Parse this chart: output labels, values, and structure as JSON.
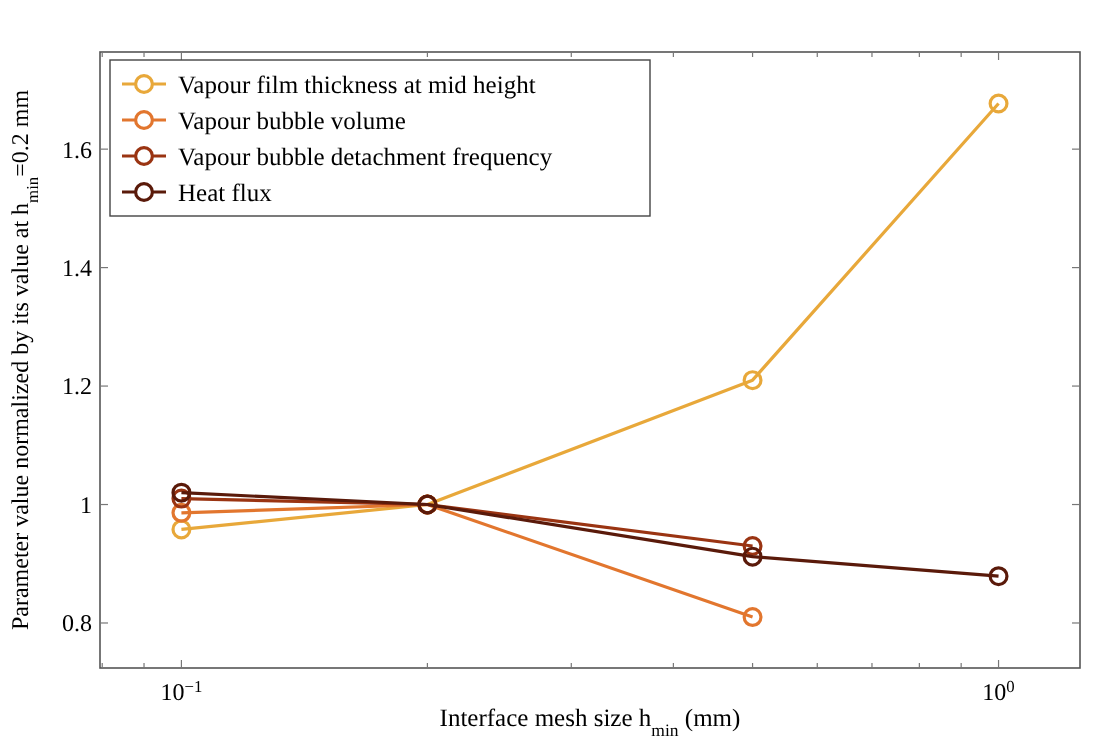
{
  "chart_data": {
    "type": "line",
    "xlabel": "Interface mesh size h$_{min}$ (mm)",
    "ylabel": "Parameter value normalized by its value at h$_{min}$=0.2 mm",
    "log": "x",
    "xlim": [
      0.0795,
      1.258
    ],
    "ylim": [
      0.724,
      1.764
    ],
    "xticks": [
      {
        "value": 0.08,
        "label": null
      },
      {
        "value": 0.09,
        "label": null
      },
      {
        "value": 0.1,
        "label": "10$^{−1}$"
      },
      {
        "value": 0.2,
        "label": null
      },
      {
        "value": 0.3,
        "label": null
      },
      {
        "value": 0.4,
        "label": null
      },
      {
        "value": 0.5,
        "label": null
      },
      {
        "value": 0.6,
        "label": null
      },
      {
        "value": 0.7,
        "label": null
      },
      {
        "value": 0.8,
        "label": null
      },
      {
        "value": 0.9,
        "label": null
      },
      {
        "value": 1,
        "label": "10$^{0}$"
      }
    ],
    "yticks": [
      0.8,
      1,
      1.2,
      1.4,
      1.6
    ],
    "grid": false,
    "legend": "top left",
    "marker": "circle",
    "line_style": "solid",
    "series": [
      {
        "name": "Vapour film thickness at mid height",
        "color": "#e8a83a",
        "x": [
          0.1,
          0.2,
          0.5,
          1
        ],
        "values": [
          0.958,
          1,
          1.21,
          1.677
        ]
      },
      {
        "name": "Vapour bubble volume",
        "color": "#e2762e",
        "x": [
          0.1,
          0.2,
          0.5
        ],
        "values": [
          0.986,
          1,
          0.81
        ]
      },
      {
        "name": "Vapour bubble detachment frequency",
        "color": "#9a3412",
        "x": [
          0.1,
          0.2,
          0.5
        ],
        "values": [
          1.01,
          1,
          0.93
        ]
      },
      {
        "name": "Heat flux",
        "color": "#5a1a0a",
        "x": [
          0.1,
          0.2,
          0.5,
          1
        ],
        "values": [
          1.02,
          1,
          0.912,
          0.879
        ]
      }
    ]
  }
}
